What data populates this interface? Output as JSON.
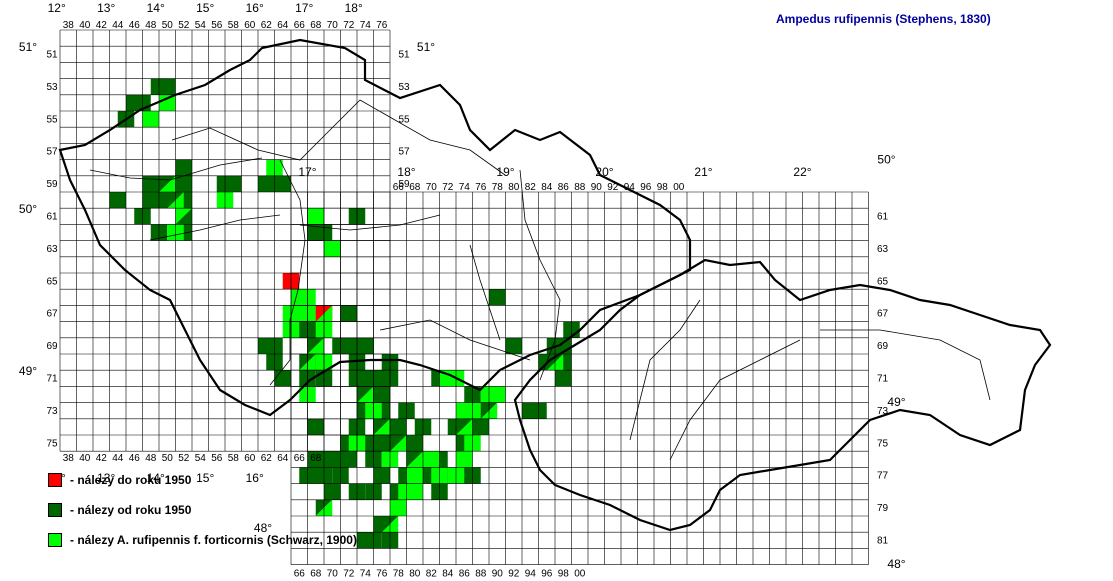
{
  "title": "Ampedus rufipennis (Stephens, 1830)",
  "colors": {
    "before_1950": "#ff0000",
    "since_1950": "#006600",
    "forticornis": "#00ff00",
    "grid": "#000000",
    "border": "#000000",
    "river": "#000000",
    "title": "#0000a0"
  },
  "legend": [
    {
      "key": "before_1950",
      "label": "- nálezy do roku 1950"
    },
    {
      "key": "since_1950",
      "label": "- nálezy od roku 1950"
    },
    {
      "key": "forticornis",
      "label": "- nálezy A. rufipennis f. forticornis (Schwarz, 1900)"
    }
  ],
  "grid": {
    "west": {
      "columns": [
        "38",
        "40",
        "42",
        "44",
        "46",
        "48",
        "50",
        "52",
        "54",
        "56",
        "58",
        "60",
        "62",
        "64",
        "66",
        "68",
        "70",
        "72",
        "74",
        "76"
      ],
      "rows": [
        "51",
        "53",
        "55",
        "57",
        "59",
        "61",
        "63",
        "65",
        "67",
        "69",
        "71",
        "73",
        "75"
      ],
      "longitudes": [
        "12°",
        "13°",
        "14°",
        "15°",
        "16°",
        "17°",
        "18°"
      ],
      "latitudes": [
        "51°",
        "50°",
        "49°"
      ]
    },
    "east": {
      "columns": [
        "66",
        "68",
        "70",
        "72",
        "74",
        "76",
        "78",
        "80",
        "82",
        "84",
        "86",
        "88",
        "90",
        "92",
        "94",
        "96",
        "98",
        "00"
      ],
      "rows": [
        "61",
        "63",
        "65",
        "67",
        "69",
        "71",
        "73",
        "75",
        "77",
        "79",
        "81"
      ],
      "longitudes": [
        "17°",
        "18°",
        "19°",
        "20°",
        "21°",
        "22°"
      ],
      "latitudes": [
        "50°",
        "49°",
        "48°"
      ]
    }
  },
  "map_data": {
    "before_1950": [
      [
        65,
        65
      ],
      [
        69,
        67
      ],
      [
        68,
        69
      ]
    ],
    "since_1950": [
      [
        46,
        54
      ],
      [
        47,
        54
      ],
      [
        45,
        55
      ],
      [
        50,
        53
      ],
      [
        49,
        53
      ],
      [
        48,
        59
      ],
      [
        49,
        59
      ],
      [
        48,
        60
      ],
      [
        50,
        59
      ],
      [
        50,
        60
      ],
      [
        51,
        60
      ],
      [
        52,
        58
      ],
      [
        52,
        59
      ],
      [
        52,
        60
      ],
      [
        52,
        62
      ],
      [
        47,
        61
      ],
      [
        49,
        62
      ],
      [
        44,
        60
      ],
      [
        62,
        59
      ],
      [
        64,
        59
      ],
      [
        68,
        62
      ],
      [
        69,
        62
      ],
      [
        73,
        61
      ],
      [
        62,
        69
      ],
      [
        63,
        69
      ],
      [
        63,
        70
      ],
      [
        64,
        71
      ],
      [
        66,
        68
      ],
      [
        68,
        68
      ],
      [
        68,
        70
      ],
      [
        67,
        71
      ],
      [
        69,
        71
      ],
      [
        71,
        69
      ],
      [
        72,
        67
      ],
      [
        72,
        69
      ],
      [
        73,
        70
      ],
      [
        73,
        71
      ],
      [
        74,
        69
      ],
      [
        74,
        71
      ],
      [
        75,
        71
      ],
      [
        74,
        72
      ],
      [
        74,
        73
      ],
      [
        76,
        71
      ],
      [
        76,
        72
      ],
      [
        76,
        73
      ],
      [
        77,
        70
      ],
      [
        77,
        71
      ],
      [
        73,
        74
      ],
      [
        74,
        75
      ],
      [
        76,
        75
      ],
      [
        77,
        75
      ],
      [
        78,
        74
      ],
      [
        79,
        73
      ],
      [
        79,
        75
      ],
      [
        80,
        75
      ],
      [
        80,
        76
      ],
      [
        81,
        74
      ],
      [
        81,
        76
      ],
      [
        82,
        77
      ],
      [
        83,
        76
      ],
      [
        83,
        78
      ],
      [
        84,
        77
      ],
      [
        86,
        77
      ],
      [
        87,
        77
      ],
      [
        88,
        74
      ],
      [
        87,
        72
      ],
      [
        83,
        71
      ],
      [
        85,
        74
      ],
      [
        86,
        74
      ],
      [
        86,
        75
      ],
      [
        90,
        66
      ],
      [
        92,
        69
      ],
      [
        94,
        73
      ],
      [
        95,
        73
      ],
      [
        96,
        70
      ],
      [
        97,
        69
      ],
      [
        98,
        69
      ],
      [
        98,
        70
      ],
      [
        98,
        71
      ],
      [
        99,
        68
      ],
      [
        68,
        74
      ],
      [
        68,
        76
      ],
      [
        68,
        77
      ],
      [
        69,
        77
      ],
      [
        70,
        76
      ],
      [
        70,
        78
      ],
      [
        71,
        77
      ],
      [
        72,
        76
      ],
      [
        74,
        81
      ],
      [
        75,
        81
      ],
      [
        76,
        80
      ],
      [
        77,
        81
      ],
      [
        75,
        76
      ],
      [
        75,
        78
      ],
      [
        76,
        77
      ],
      [
        78,
        78
      ],
      [
        79,
        77
      ],
      [
        73,
        78
      ],
      [
        72,
        75
      ],
      [
        67,
        77
      ],
      [
        57,
        59
      ],
      [
        58,
        59
      ]
    ],
    "forticornis": [
      [
        48,
        55
      ],
      [
        50,
        54
      ],
      [
        63,
        58
      ],
      [
        66,
        66
      ],
      [
        67,
        66
      ],
      [
        65,
        67
      ],
      [
        66,
        67
      ],
      [
        67,
        67
      ],
      [
        65,
        68
      ],
      [
        69,
        68
      ],
      [
        69,
        70
      ],
      [
        68,
        69
      ],
      [
        70,
        63
      ],
      [
        68,
        61
      ],
      [
        67,
        72
      ],
      [
        75,
        73
      ],
      [
        76,
        74
      ],
      [
        77,
        76
      ],
      [
        80,
        77
      ],
      [
        82,
        76
      ],
      [
        83,
        77
      ],
      [
        84,
        71
      ],
      [
        85,
        71
      ],
      [
        86,
        73
      ],
      [
        86,
        76
      ],
      [
        87,
        75
      ],
      [
        88,
        73
      ],
      [
        89,
        72
      ],
      [
        90,
        72
      ],
      [
        85,
        77
      ],
      [
        73,
        75
      ],
      [
        78,
        79
      ],
      [
        79,
        78
      ],
      [
        80,
        78
      ],
      [
        52,
        61
      ],
      [
        51,
        62
      ],
      [
        57,
        60
      ]
    ],
    "diagonal_cells": [
      [
        50,
        59,
        "since_1950",
        "forticornis"
      ],
      [
        51,
        60,
        "since_1950",
        "forticornis"
      ],
      [
        52,
        61,
        "forticornis",
        "since_1950"
      ],
      [
        69,
        67,
        "before_1950",
        "forticornis"
      ],
      [
        74,
        72,
        "since_1950",
        "forticornis"
      ],
      [
        76,
        74,
        "since_1950",
        "forticornis"
      ],
      [
        78,
        75,
        "since_1950",
        "forticornis"
      ],
      [
        80,
        76,
        "since_1950",
        "forticornis"
      ],
      [
        68,
        69,
        "since_1950",
        "forticornis"
      ],
      [
        67,
        70,
        "since_1950",
        "forticornis"
      ],
      [
        86,
        74,
        "since_1950",
        "forticornis"
      ],
      [
        89,
        73,
        "since_1950",
        "forticornis"
      ],
      [
        97,
        70,
        "since_1950",
        "forticornis"
      ],
      [
        77,
        80,
        "since_1950",
        "forticornis"
      ],
      [
        69,
        79,
        "since_1950",
        "forticornis"
      ]
    ]
  }
}
